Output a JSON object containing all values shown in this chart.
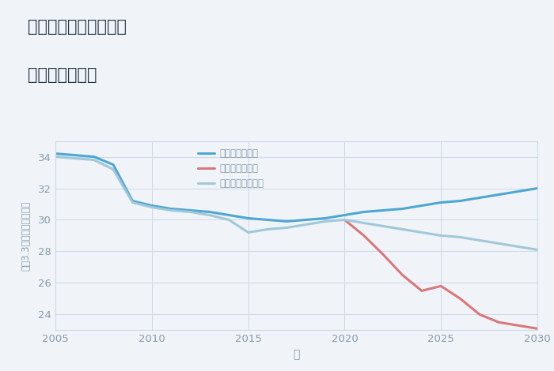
{
  "title_line1": "愛知県豊橋市高田町の",
  "title_line2": "土地の価格推移",
  "xlabel": "年",
  "ylabel": "坪（3.3㎡）単価（万円）",
  "background_color": "#f0f4f8",
  "plot_bg_color": "#f0f4f8",
  "good_scenario": {
    "label": "グッドシナリオ",
    "color": "#4da6d4",
    "x": [
      2005,
      2006,
      2007,
      2008,
      2009,
      2010,
      2011,
      2012,
      2013,
      2014,
      2015,
      2016,
      2017,
      2018,
      2019,
      2020,
      2021,
      2022,
      2023,
      2024,
      2025,
      2026,
      2027,
      2028,
      2029,
      2030
    ],
    "y": [
      34.2,
      34.1,
      34.0,
      33.5,
      31.2,
      30.9,
      30.7,
      30.6,
      30.5,
      30.3,
      30.1,
      30.0,
      29.9,
      30.0,
      30.1,
      30.3,
      30.5,
      30.6,
      30.7,
      30.9,
      31.1,
      31.2,
      31.4,
      31.6,
      31.8,
      32.0
    ]
  },
  "bad_scenario": {
    "label": "バッドシナリオ",
    "color": "#d9777a",
    "x": [
      2020,
      2021,
      2022,
      2023,
      2024,
      2025,
      2026,
      2027,
      2028,
      2029,
      2030
    ],
    "y": [
      30.0,
      29.0,
      27.8,
      26.5,
      25.5,
      25.8,
      25.0,
      24.0,
      23.5,
      23.3,
      23.1
    ]
  },
  "normal_scenario": {
    "label": "ノーマルシナリオ",
    "color": "#a0c8d8",
    "x": [
      2005,
      2006,
      2007,
      2008,
      2009,
      2010,
      2011,
      2012,
      2013,
      2014,
      2015,
      2016,
      2017,
      2018,
      2019,
      2020,
      2021,
      2022,
      2023,
      2024,
      2025,
      2026,
      2027,
      2028,
      2029,
      2030
    ],
    "y": [
      34.0,
      33.9,
      33.8,
      33.2,
      31.1,
      30.8,
      30.6,
      30.5,
      30.3,
      30.0,
      29.2,
      29.4,
      29.5,
      29.7,
      29.9,
      30.0,
      29.8,
      29.6,
      29.4,
      29.2,
      29.0,
      28.9,
      28.7,
      28.5,
      28.3,
      28.1
    ]
  },
  "xlim": [
    2005,
    2030
  ],
  "ylim": [
    23,
    35
  ],
  "xticks": [
    2005,
    2010,
    2015,
    2020,
    2025,
    2030
  ],
  "yticks": [
    24,
    26,
    28,
    30,
    32,
    34
  ],
  "grid_color": "#ccd8e8",
  "tick_color": "#8899aa",
  "title_color": "#223344"
}
